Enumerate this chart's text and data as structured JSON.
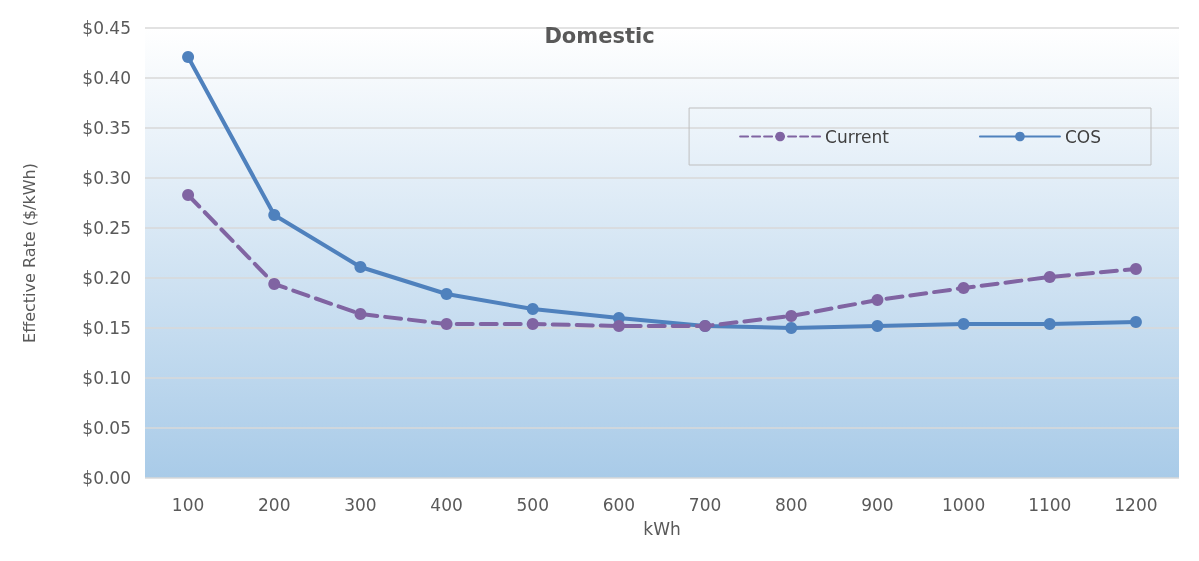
{
  "chart_data": {
    "type": "line",
    "title": "Domestic",
    "xlabel": "kWh",
    "ylabel": "Effective Rate ($/kWh)",
    "categories": [
      "100",
      "200",
      "300",
      "400",
      "500",
      "600",
      "700",
      "800",
      "900",
      "1000",
      "1100",
      "1200"
    ],
    "series": [
      {
        "name": "Current",
        "color": "#8064a2",
        "line_style": "dashed",
        "values": [
          0.283,
          0.194,
          0.164,
          0.154,
          0.154,
          0.152,
          0.152,
          0.162,
          0.178,
          0.19,
          0.201,
          0.209
        ]
      },
      {
        "name": "COS",
        "color": "#4f81bd",
        "line_style": "solid",
        "values": [
          0.421,
          0.263,
          0.211,
          0.184,
          0.169,
          0.16,
          0.152,
          0.15,
          0.152,
          0.154,
          0.154,
          0.156
        ]
      }
    ],
    "ylim": [
      0,
      0.45
    ],
    "yticks": [
      {
        "value": 0,
        "label": "$0.00"
      },
      {
        "value": 0.05,
        "label": "$0.05"
      },
      {
        "value": 0.1,
        "label": "$0.10"
      },
      {
        "value": 0.15,
        "label": "$0.15"
      },
      {
        "value": 0.2,
        "label": "$0.20"
      },
      {
        "value": 0.25,
        "label": "$0.25"
      },
      {
        "value": 0.3,
        "label": "$0.30"
      },
      {
        "value": 0.35,
        "label": "$0.35"
      },
      {
        "value": 0.4,
        "label": "$0.40"
      },
      {
        "value": 0.45,
        "label": "$0.45"
      }
    ],
    "grid": "y",
    "legend": "top right",
    "marker": "circle"
  }
}
